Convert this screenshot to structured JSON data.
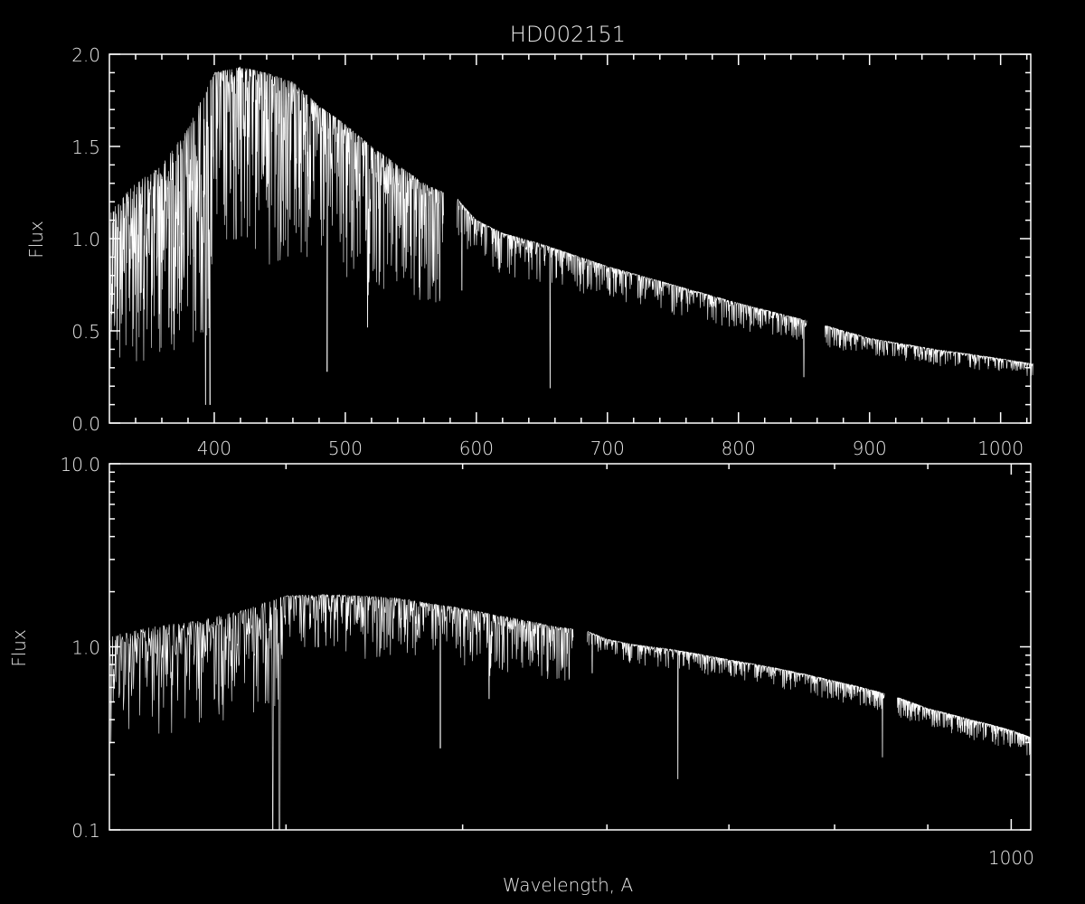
{
  "chart_data": [
    {
      "type": "line",
      "title": "HD002151",
      "xlabel": "",
      "ylabel": "Flux",
      "xlim": [
        320,
        1023
      ],
      "ylim": [
        0.0,
        2.0
      ],
      "xscale": "linear",
      "yscale": "linear",
      "xticks": [
        400,
        500,
        600,
        700,
        800,
        900,
        1000
      ],
      "xtick_labels": [
        "400",
        "500",
        "600",
        "700",
        "800",
        "900",
        "1000"
      ],
      "yticks": [
        0.0,
        0.5,
        1.0,
        1.5,
        2.0
      ],
      "ytick_labels": [
        "0.0",
        "0.5",
        "1.0",
        "1.5",
        "2.0"
      ],
      "grid": false
    },
    {
      "type": "line",
      "title": "",
      "xlabel": "Wavelength, A",
      "ylabel": "Flux",
      "xlim": [
        320,
        1025
      ],
      "ylim": [
        0.1,
        10.0
      ],
      "xscale": "log",
      "yscale": "log",
      "xticks": [
        400,
        500,
        600,
        700,
        800,
        900,
        1000
      ],
      "xtick_labels": [
        "",
        "",
        "",
        "",
        "",
        "",
        "1000"
      ],
      "yticks": [
        0.1,
        1.0,
        10.0
      ],
      "ytick_labels": [
        "0.1",
        "1.0",
        "10.0"
      ],
      "grid": false
    }
  ],
  "spectrum": {
    "continuum_wavelength": [
      320,
      340,
      360,
      380,
      400,
      420,
      440,
      460,
      480,
      500,
      520,
      540,
      560,
      575,
      585,
      600,
      620,
      650,
      700,
      750,
      800,
      850,
      866,
      900,
      950,
      1000,
      1025
    ],
    "continuum_flux": [
      1.15,
      1.3,
      1.4,
      1.6,
      1.9,
      1.93,
      1.9,
      1.85,
      1.72,
      1.62,
      1.5,
      1.4,
      1.3,
      1.25,
      1.22,
      1.1,
      1.03,
      0.97,
      0.85,
      0.75,
      0.65,
      0.56,
      0.53,
      0.46,
      0.4,
      0.35,
      0.32
    ],
    "gaps": [
      [
        575,
        585
      ],
      [
        852,
        866
      ]
    ],
    "strong_lines": [
      {
        "wavelength": 393.4,
        "flux": 0.1
      },
      {
        "wavelength": 396.8,
        "flux": 0.1
      },
      {
        "wavelength": 486.1,
        "flux": 0.28
      },
      {
        "wavelength": 517.0,
        "flux": 0.52
      },
      {
        "wavelength": 589.0,
        "flux": 0.72
      },
      {
        "wavelength": 656.3,
        "flux": 0.19
      },
      {
        "wavelength": 849.8,
        "flux": 0.25
      },
      {
        "wavelength": 854.2,
        "flux": 0.3
      }
    ]
  },
  "colors": {
    "background": "#000000",
    "foreground": "#ffffff"
  }
}
